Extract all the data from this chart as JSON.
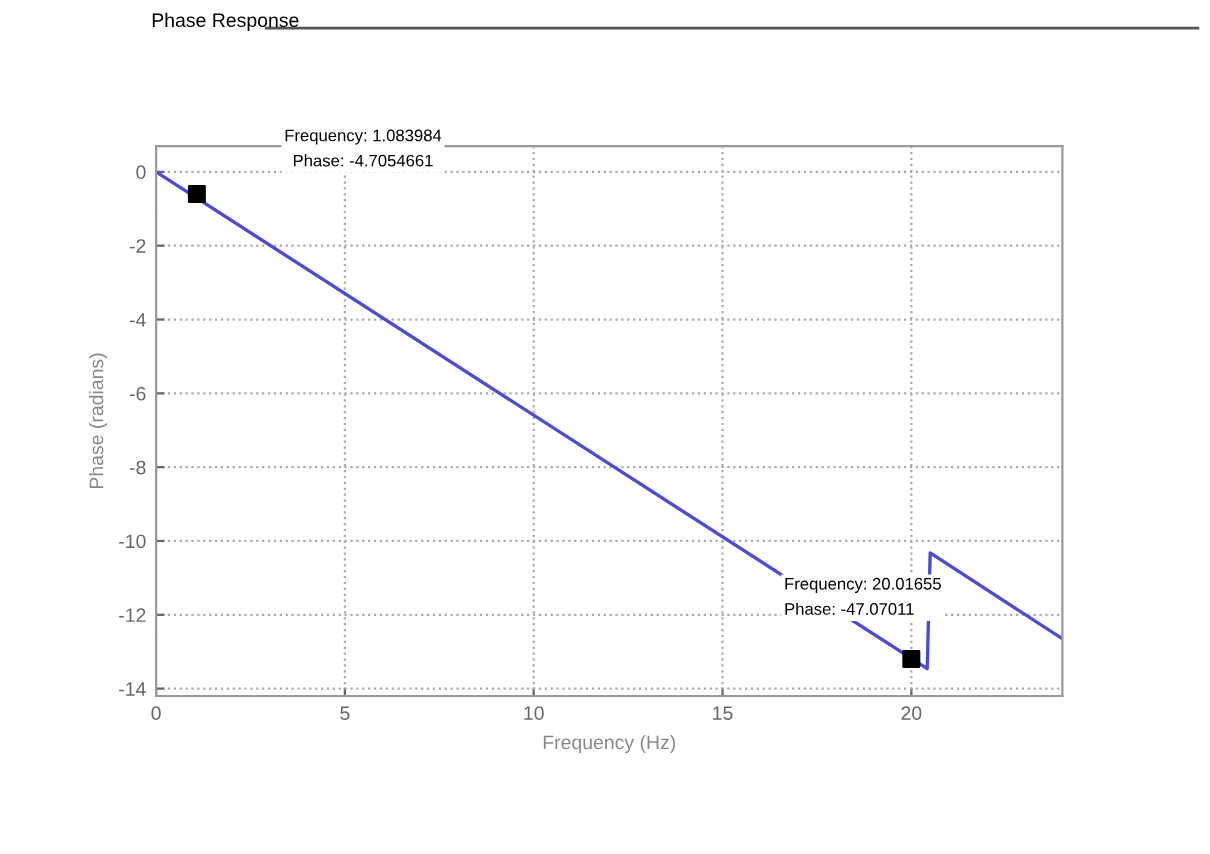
{
  "chart_data": {
    "type": "line",
    "title": "Phase Response",
    "xlabel": "Frequency (Hz)",
    "ylabel": "Phase (radians)",
    "series": [
      {
        "color": "#4b4bd6",
        "x": [
          0,
          20.42,
          20.5,
          24
        ],
        "values": [
          0,
          -13.46,
          -10.32,
          -12.65
        ]
      },
      {
        "type": "scatter",
        "color": "#000000",
        "marker": "square",
        "x": [
          1.08,
          20.0
        ],
        "values": [
          -0.6,
          -13.2
        ]
      }
    ],
    "annotations": [
      "Frequency: 1.083984\nPhase: -4.7054661",
      "Frequency: 20.01655\nPhase: -47.07011"
    ],
    "xlim": [
      0,
      24
    ],
    "xticks": [
      0,
      5,
      10,
      15,
      20
    ],
    "ylim": [
      -14.2,
      0.7
    ],
    "yticks": [
      0,
      -2,
      -4,
      -6,
      -8,
      -10,
      -12,
      -14
    ],
    "grid": true
  }
}
